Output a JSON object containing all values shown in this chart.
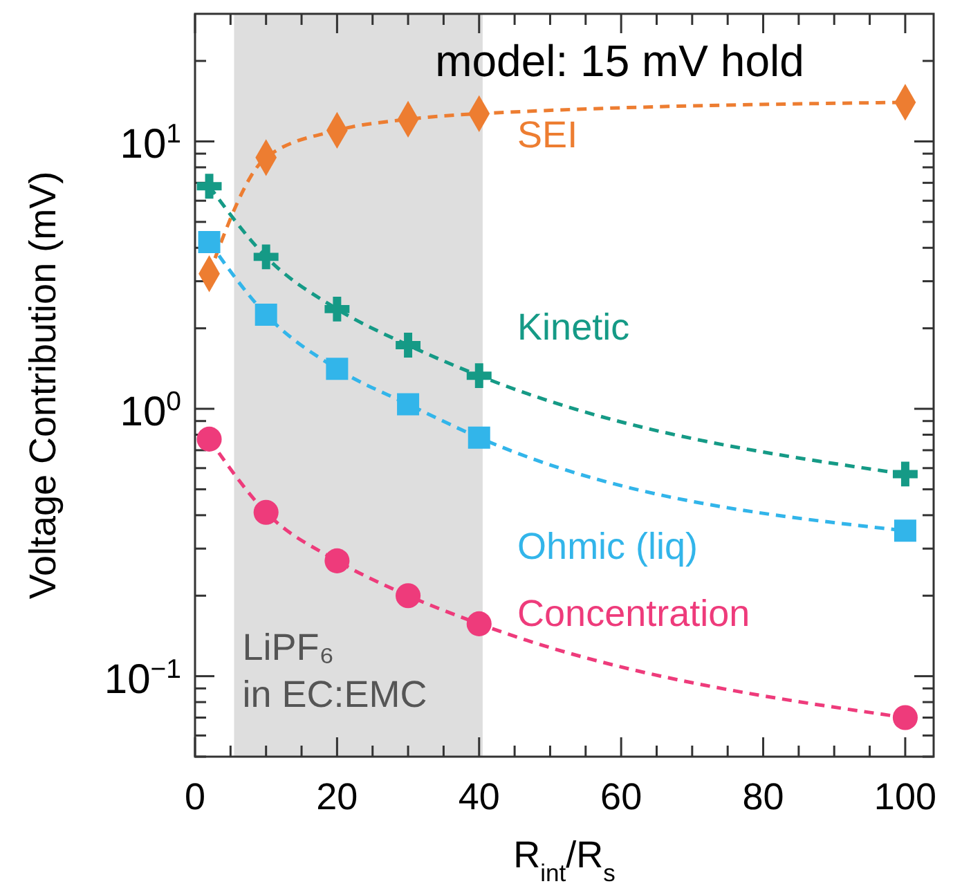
{
  "chart_data": {
    "type": "line",
    "title": "model: 15 mV  hold",
    "xlabel": "R$_{int}$/R$_{s}$",
    "ylabel": "Voltage Contribution (mV)",
    "log": "y",
    "xlim": [
      0,
      104
    ],
    "ylim": [
      0.05,
      30
    ],
    "xticks": [
      0,
      {
        "value": 5,
        "label": null
      },
      20,
      {
        "value": 15,
        "label": null
      },
      {
        "value": 10,
        "label": null
      },
      {
        "value": 25,
        "label": null
      },
      40,
      {
        "value": 30,
        "label": null
      },
      {
        "value": 35,
        "label": null
      },
      {
        "value": 45,
        "label": null
      },
      60,
      {
        "value": 50,
        "label": null
      },
      {
        "value": 55,
        "label": null
      },
      {
        "value": 65,
        "label": null
      },
      80,
      {
        "value": 70,
        "label": null
      },
      {
        "value": 75,
        "label": null
      },
      {
        "value": 85,
        "label": null
      },
      100,
      {
        "value": 90,
        "label": null
      },
      {
        "value": 95,
        "label": null
      }
    ],
    "yticks": [
      {
        "value": 0.1,
        "label": "10$^{−1}$"
      },
      {
        "value": 1,
        "label": "10$^{0}$"
      },
      {
        "value": 10,
        "label": "10$^{1}$"
      },
      {
        "value": 0.05,
        "label": null
      },
      {
        "value": 0.06,
        "label": null
      },
      {
        "value": 0.07,
        "label": null
      },
      {
        "value": 0.08,
        "label": null
      },
      {
        "value": 0.09,
        "label": null
      },
      {
        "value": 0.2,
        "label": null
      },
      {
        "value": 0.3,
        "label": null
      },
      {
        "value": 0.4,
        "label": null
      },
      {
        "value": 0.5,
        "label": null
      },
      {
        "value": 0.6,
        "label": null
      },
      {
        "value": 0.7,
        "label": null
      },
      {
        "value": 0.8,
        "label": null
      },
      {
        "value": 0.9,
        "label": null
      },
      {
        "value": 2,
        "label": null
      },
      {
        "value": 3,
        "label": null
      },
      {
        "value": 4,
        "label": null
      },
      {
        "value": 5,
        "label": null
      },
      {
        "value": 6,
        "label": null
      },
      {
        "value": 7,
        "label": null
      },
      {
        "value": 8,
        "label": null
      },
      {
        "value": 9,
        "label": null
      },
      {
        "value": 20,
        "label": null
      }
    ],
    "grid": false,
    "line_style": "dashed",
    "x": [
      2,
      10,
      20,
      30,
      40,
      100
    ],
    "series": [
      {
        "name": "SEI",
        "color": "#ed7d31",
        "marker": "diamond",
        "values": [
          3.2,
          8.7,
          11.0,
          12.1,
          12.7,
          14.0
        ]
      },
      {
        "name": "Kinetic",
        "color": "#159a86",
        "marker": "cross",
        "values": [
          6.8,
          3.7,
          2.36,
          1.73,
          1.33,
          0.57
        ]
      },
      {
        "name": "Ohmic (liq)",
        "color": "#32b5ea",
        "marker": "square",
        "values": [
          4.2,
          2.25,
          1.41,
          1.04,
          0.78,
          0.35
        ]
      },
      {
        "name": "Concentration",
        "color": "#ee3b7b",
        "marker": "circle",
        "values": [
          0.77,
          0.41,
          0.27,
          0.2,
          0.157,
          0.07
        ]
      }
    ],
    "bands": [
      {
        "axis": "x",
        "from": 5.5,
        "to": 40.5,
        "label": "LiPF₆\nin EC:EMC",
        "color": "#dedede"
      }
    ]
  }
}
